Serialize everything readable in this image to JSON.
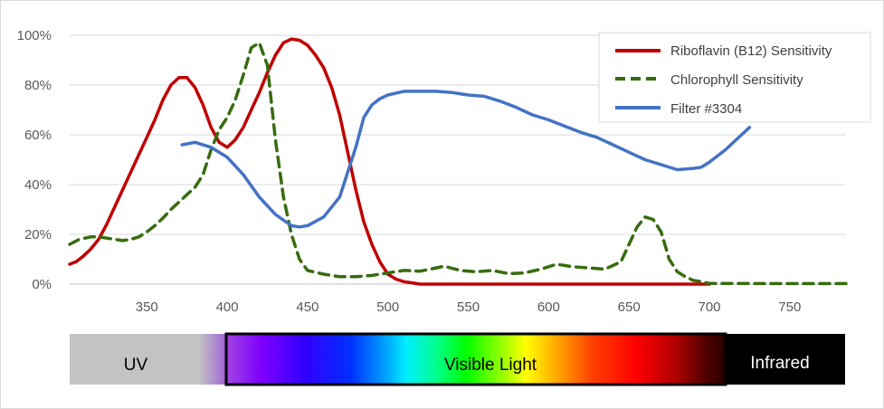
{
  "chart_data": {
    "type": "line",
    "title": "",
    "xlabel": "",
    "ylabel": "",
    "xlim": [
      302,
      785
    ],
    "ylim": [
      0,
      100
    ],
    "xticks": [
      350,
      400,
      450,
      500,
      550,
      600,
      650,
      700,
      750
    ],
    "xtick_labels": [
      "350",
      "400",
      "450",
      "500",
      "550",
      "600",
      "650",
      "700",
      "750"
    ],
    "yticks": [
      0,
      20,
      40,
      60,
      80,
      100
    ],
    "ytick_labels": [
      "0%",
      "20%",
      "40%",
      "60%",
      "80%",
      "100%"
    ],
    "grid": "horizontal",
    "legend_position": "top-right",
    "series": [
      {
        "name": "Riboflavin (B12) Sensitivity",
        "color": "#c00000",
        "style": "solid",
        "x": [
          302,
          306,
          310,
          315,
          320,
          325,
          330,
          335,
          340,
          345,
          350,
          355,
          360,
          365,
          370,
          375,
          380,
          385,
          390,
          395,
          400,
          405,
          410,
          415,
          420,
          425,
          430,
          435,
          440,
          445,
          450,
          455,
          460,
          465,
          470,
          475,
          480,
          485,
          490,
          495,
          500,
          505,
          510,
          515,
          520,
          530,
          560,
          600,
          650,
          700
        ],
        "values": [
          8,
          9,
          11,
          14,
          18,
          24,
          31,
          38,
          45,
          52,
          59,
          66,
          74,
          80,
          83,
          83,
          79,
          72,
          63,
          57,
          55,
          58,
          63,
          70,
          77,
          85,
          92,
          97,
          98.5,
          98,
          96,
          92,
          87,
          79,
          68,
          53,
          38,
          25,
          16,
          9,
          4,
          2,
          1,
          0.5,
          0,
          0,
          0,
          0,
          0,
          0
        ]
      },
      {
        "name": "Chlorophyll Sensitivity",
        "color": "#376c0f",
        "style": "dashed",
        "x": [
          302,
          308,
          315,
          320,
          330,
          335,
          340,
          345,
          350,
          355,
          360,
          365,
          370,
          375,
          380,
          385,
          390,
          395,
          400,
          405,
          410,
          415,
          420,
          425,
          430,
          435,
          440,
          445,
          450,
          460,
          470,
          480,
          490,
          500,
          510,
          520,
          530,
          535,
          545,
          555,
          565,
          575,
          585,
          595,
          605,
          615,
          625,
          635,
          645,
          650,
          655,
          660,
          665,
          670,
          675,
          680,
          685,
          690,
          695,
          700,
          750,
          785
        ],
        "values": [
          16,
          18,
          19,
          19,
          18,
          17.5,
          18,
          19,
          21,
          23.5,
          26.5,
          30,
          33,
          36,
          39,
          44,
          54,
          62,
          67,
          74,
          84,
          95,
          97,
          88,
          58,
          35,
          20,
          10,
          5.5,
          4,
          3,
          3,
          3.5,
          4.5,
          5.5,
          5.2,
          6.5,
          7.2,
          5.5,
          5.0,
          5.5,
          4.2,
          4.5,
          6.0,
          8,
          7,
          6.5,
          6,
          9,
          16,
          23,
          27,
          26,
          21,
          10,
          5,
          3,
          1.5,
          1,
          0.3,
          0.2,
          0.2
        ]
      },
      {
        "name": "Filter #3304",
        "color": "#4472c4",
        "style": "solid",
        "x": [
          372,
          380,
          390,
          400,
          410,
          420,
          430,
          440,
          445,
          450,
          460,
          470,
          480,
          485,
          490,
          495,
          500,
          510,
          520,
          530,
          540,
          550,
          560,
          570,
          580,
          590,
          600,
          610,
          620,
          630,
          640,
          650,
          660,
          670,
          680,
          690,
          695,
          700,
          710,
          720,
          725
        ],
        "values": [
          56,
          57,
          55,
          51,
          44,
          35,
          28,
          23.5,
          23,
          23.5,
          27,
          35,
          55,
          67,
          72,
          74.5,
          76,
          77.5,
          77.5,
          77.5,
          77,
          76,
          75.5,
          73.5,
          71,
          68,
          66,
          63.5,
          61,
          59,
          56,
          53,
          50,
          48,
          46,
          46.5,
          47,
          49,
          54,
          60,
          63
        ]
      }
    ],
    "spectrum_bar": {
      "labels": [
        "UV",
        "Visible Light",
        "Infrared"
      ]
    }
  }
}
